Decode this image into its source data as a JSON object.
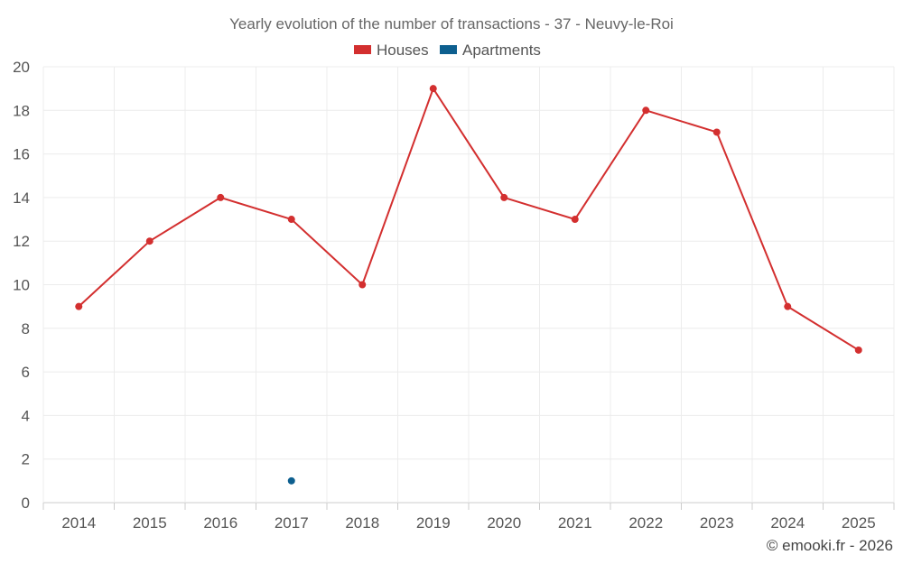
{
  "chart_data": {
    "type": "line",
    "title": "Yearly evolution of the number of transactions - 37 - Neuvy-le-Roi",
    "categories": [
      "2014",
      "2015",
      "2016",
      "2017",
      "2018",
      "2019",
      "2020",
      "2021",
      "2022",
      "2023",
      "2024",
      "2025"
    ],
    "series": [
      {
        "name": "Houses",
        "color": "#d32f2f",
        "values": [
          9,
          12,
          14,
          13,
          10,
          19,
          14,
          13,
          18,
          17,
          9,
          7
        ]
      },
      {
        "name": "Apartments",
        "color": "#0d5f8f",
        "values": [
          null,
          null,
          null,
          1,
          null,
          null,
          null,
          null,
          null,
          null,
          null,
          null
        ]
      }
    ],
    "ylim": [
      0,
      20
    ],
    "yticks": [
      0,
      2,
      4,
      6,
      8,
      10,
      12,
      14,
      16,
      18,
      20
    ],
    "xlabel": "",
    "ylabel": "",
    "grid": true,
    "legend": "top-center"
  },
  "credit": "© emooki.fr - 2026"
}
